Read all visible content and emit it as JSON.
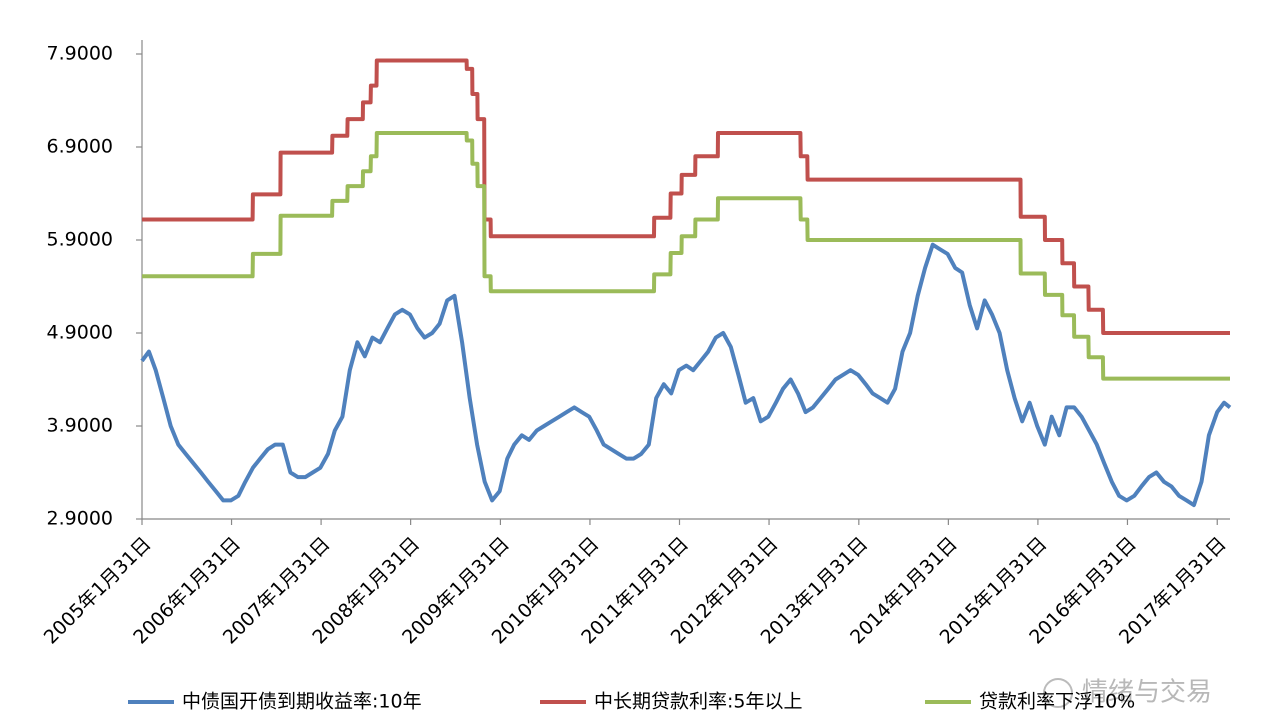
{
  "chart_data": {
    "type": "line",
    "xlim": [
      "2005-01-31",
      "2017-03-24"
    ],
    "xticks": [
      {
        "value": "2005-01-31",
        "label": "2005年1月31日"
      },
      {
        "value": "2006-01-31",
        "label": "2006年1月31日"
      },
      {
        "value": "2007-01-31",
        "label": "2007年1月31日"
      },
      {
        "value": "2008-01-31",
        "label": "2008年1月31日"
      },
      {
        "value": "2009-01-31",
        "label": "2009年1月31日"
      },
      {
        "value": "2010-01-31",
        "label": "2010年1月31日"
      },
      {
        "value": "2011-01-31",
        "label": "2011年1月31日"
      },
      {
        "value": "2012-01-31",
        "label": "2012年1月31日"
      },
      {
        "value": "2013-01-31",
        "label": "2013年1月31日"
      },
      {
        "value": "2014-01-31",
        "label": "2014年1月31日"
      },
      {
        "value": "2015-01-31",
        "label": "2015年1月31日"
      },
      {
        "value": "2016-01-31",
        "label": "2016年1月31日"
      },
      {
        "value": "2017-01-31",
        "label": "2017年1月31日"
      }
    ],
    "ylim": [
      2.9,
      7.9
    ],
    "yticks": [
      {
        "value": 2.9,
        "label": "2.9000"
      },
      {
        "value": 3.9,
        "label": "3.9000"
      },
      {
        "value": 4.9,
        "label": "4.9000"
      },
      {
        "value": 5.9,
        "label": "5.9000"
      },
      {
        "value": 6.9,
        "label": "6.9000"
      },
      {
        "value": 7.9,
        "label": "7.9000"
      }
    ],
    "grid": false,
    "legend": "bottom",
    "watermark": "情绪与交易",
    "series": [
      {
        "name": "中债国开债到期收益率:10年",
        "color": "#4f81bd",
        "x": [
          "2005-01-31",
          "2005-02-28",
          "2005-03-28",
          "2005-04-28",
          "2005-05-28",
          "2005-06-28",
          "2005-07-28",
          "2005-08-28",
          "2005-09-28",
          "2005-10-28",
          "2005-11-28",
          "2005-12-28",
          "2006-01-28",
          "2006-02-28",
          "2006-03-28",
          "2006-04-28",
          "2006-05-28",
          "2006-06-28",
          "2006-07-28",
          "2006-08-28",
          "2006-09-28",
          "2006-10-28",
          "2006-11-28",
          "2006-12-28",
          "2007-01-28",
          "2007-02-28",
          "2007-03-28",
          "2007-04-28",
          "2007-05-28",
          "2007-06-28",
          "2007-07-28",
          "2007-08-28",
          "2007-09-28",
          "2007-10-28",
          "2007-11-28",
          "2007-12-28",
          "2008-01-28",
          "2008-02-28",
          "2008-03-28",
          "2008-04-28",
          "2008-05-28",
          "2008-06-28",
          "2008-07-28",
          "2008-08-28",
          "2008-09-28",
          "2008-10-28",
          "2008-11-28",
          "2008-12-28",
          "2009-01-28",
          "2009-02-28",
          "2009-03-28",
          "2009-04-28",
          "2009-05-28",
          "2009-06-28",
          "2009-07-28",
          "2009-08-28",
          "2009-09-28",
          "2009-10-28",
          "2009-11-28",
          "2009-12-28",
          "2010-01-28",
          "2010-02-28",
          "2010-03-28",
          "2010-04-28",
          "2010-05-28",
          "2010-06-28",
          "2010-07-28",
          "2010-08-28",
          "2010-09-28",
          "2010-10-28",
          "2010-11-28",
          "2010-12-28",
          "2011-01-28",
          "2011-02-28",
          "2011-03-28",
          "2011-04-28",
          "2011-05-28",
          "2011-06-28",
          "2011-07-28",
          "2011-08-28",
          "2011-09-28",
          "2011-10-28",
          "2011-11-28",
          "2011-12-28",
          "2012-01-28",
          "2012-02-28",
          "2012-03-28",
          "2012-04-28",
          "2012-05-28",
          "2012-06-28",
          "2012-07-28",
          "2012-08-28",
          "2012-09-28",
          "2012-10-28",
          "2012-11-28",
          "2012-12-28",
          "2013-01-28",
          "2013-02-28",
          "2013-03-28",
          "2013-04-28",
          "2013-05-28",
          "2013-06-28",
          "2013-07-28",
          "2013-08-28",
          "2013-09-28",
          "2013-10-28",
          "2013-11-28",
          "2013-12-28",
          "2014-01-28",
          "2014-02-28",
          "2014-03-28",
          "2014-04-28",
          "2014-05-28",
          "2014-06-28",
          "2014-07-28",
          "2014-08-28",
          "2014-09-28",
          "2014-10-28",
          "2014-11-28",
          "2014-12-28",
          "2015-01-28",
          "2015-02-28",
          "2015-03-28",
          "2015-04-28",
          "2015-05-28",
          "2015-06-28",
          "2015-07-28",
          "2015-08-28",
          "2015-09-28",
          "2015-10-28",
          "2015-11-28",
          "2015-12-28",
          "2016-01-28",
          "2016-02-28",
          "2016-03-28",
          "2016-04-28",
          "2016-05-28",
          "2016-06-28",
          "2016-07-28",
          "2016-08-28",
          "2016-09-28",
          "2016-10-28",
          "2016-11-28",
          "2016-12-28",
          "2017-01-31",
          "2017-02-28",
          "2017-03-24"
        ],
        "values": [
          4.6,
          4.7,
          4.5,
          4.2,
          3.9,
          3.7,
          3.6,
          3.5,
          3.4,
          3.3,
          3.2,
          3.1,
          3.1,
          3.15,
          3.3,
          3.45,
          3.55,
          3.65,
          3.7,
          3.7,
          3.4,
          3.35,
          3.35,
          3.4,
          3.45,
          3.6,
          3.85,
          4.0,
          4.5,
          4.8,
          4.65,
          4.85,
          4.8,
          4.95,
          5.1,
          5.15,
          5.1,
          4.95,
          4.85,
          4.9,
          5.0,
          5.25,
          5.3,
          4.8,
          4.2,
          3.7,
          3.3,
          3.1,
          3.2,
          3.55,
          3.7,
          3.8,
          3.75,
          3.85,
          3.9,
          3.95,
          4.0,
          4.05,
          4.1,
          4.05,
          4.0,
          3.85,
          3.7,
          3.65,
          3.6,
          3.55,
          3.55,
          3.6,
          3.7,
          4.2,
          4.35,
          4.25,
          4.5,
          4.55,
          4.5,
          4.6,
          4.7,
          4.85,
          4.9,
          4.75,
          4.45,
          4.15,
          4.2,
          3.95,
          4.0,
          4.15,
          4.3,
          4.4,
          4.25,
          4.05,
          4.1,
          4.2,
          4.3,
          4.4,
          4.45,
          4.5,
          4.45,
          4.35,
          4.25,
          4.2,
          4.15,
          4.3,
          4.7,
          4.9,
          5.3,
          5.6,
          5.85,
          5.8,
          5.75,
          5.6,
          5.55,
          5.2,
          4.95,
          5.25,
          5.1,
          4.9,
          4.5,
          4.2,
          3.95,
          4.15,
          3.9,
          3.7,
          4.0,
          3.8,
          4.1,
          4.1,
          4.0,
          3.85,
          3.7,
          3.5,
          3.3,
          3.15,
          3.1,
          3.15,
          3.25,
          3.35,
          3.4,
          3.3,
          3.25,
          3.15,
          3.1,
          3.05,
          3.3,
          3.8,
          4.05,
          4.15,
          4.1
        ]
      },
      {
        "name": "中长期贷款利率:5年以上",
        "color": "#c0504d",
        "x": [
          "2005-01-31",
          "2006-04-27",
          "2006-04-28",
          "2006-08-18",
          "2006-08-19",
          "2007-03-17",
          "2007-03-18",
          "2007-05-18",
          "2007-05-19",
          "2007-07-20",
          "2007-07-21",
          "2007-08-21",
          "2007-08-22",
          "2007-09-14",
          "2007-09-15",
          "2008-09-15",
          "2008-09-16",
          "2008-10-08",
          "2008-10-09",
          "2008-10-29",
          "2008-10-30",
          "2008-11-26",
          "2008-11-27",
          "2008-12-22",
          "2008-12-23",
          "2010-10-19",
          "2010-10-20",
          "2010-12-25",
          "2010-12-26",
          "2011-02-08",
          "2011-02-09",
          "2011-04-05",
          "2011-04-06",
          "2011-07-06",
          "2011-07-07",
          "2012-06-07",
          "2012-06-08",
          "2012-07-05",
          "2012-07-06",
          "2014-11-21",
          "2014-11-22",
          "2015-02-28",
          "2015-03-01",
          "2015-05-10",
          "2015-05-11",
          "2015-06-27",
          "2015-06-28",
          "2015-08-25",
          "2015-08-26",
          "2015-10-23",
          "2015-10-24",
          "2017-03-24"
        ],
        "values": [
          6.12,
          6.12,
          6.39,
          6.39,
          6.84,
          6.84,
          7.02,
          7.02,
          7.2,
          7.2,
          7.38,
          7.38,
          7.56,
          7.56,
          7.83,
          7.83,
          7.74,
          7.74,
          7.47,
          7.47,
          7.2,
          7.2,
          6.12,
          6.12,
          5.94,
          5.94,
          6.14,
          6.14,
          6.4,
          6.4,
          6.6,
          6.6,
          6.8,
          6.8,
          7.05,
          7.05,
          6.8,
          6.8,
          6.55,
          6.55,
          6.15,
          6.15,
          5.9,
          5.9,
          5.65,
          5.65,
          5.4,
          5.4,
          5.15,
          5.15,
          4.9,
          4.9
        ]
      },
      {
        "name": "贷款利率下浮10%",
        "color": "#9bbb59",
        "x": [
          "2005-01-31",
          "2006-04-27",
          "2006-04-28",
          "2006-08-18",
          "2006-08-19",
          "2007-03-17",
          "2007-03-18",
          "2007-05-18",
          "2007-05-19",
          "2007-07-20",
          "2007-07-21",
          "2007-08-21",
          "2007-08-22",
          "2007-09-14",
          "2007-09-15",
          "2008-09-15",
          "2008-09-16",
          "2008-10-08",
          "2008-10-09",
          "2008-10-29",
          "2008-10-30",
          "2008-11-26",
          "2008-11-27",
          "2008-12-22",
          "2008-12-23",
          "2010-10-19",
          "2010-10-20",
          "2010-12-25",
          "2010-12-26",
          "2011-02-08",
          "2011-02-09",
          "2011-04-05",
          "2011-04-06",
          "2011-07-06",
          "2011-07-07",
          "2012-06-07",
          "2012-06-08",
          "2012-07-05",
          "2012-07-06",
          "2014-11-21",
          "2014-11-22",
          "2015-02-28",
          "2015-03-01",
          "2015-05-10",
          "2015-05-11",
          "2015-06-27",
          "2015-06-28",
          "2015-08-25",
          "2015-08-26",
          "2015-10-23",
          "2015-10-24",
          "2017-03-24"
        ],
        "values": [
          5.51,
          5.51,
          5.75,
          5.75,
          6.16,
          6.16,
          6.32,
          6.32,
          6.48,
          6.48,
          6.64,
          6.64,
          6.8,
          6.8,
          7.05,
          7.05,
          6.97,
          6.97,
          6.72,
          6.72,
          6.48,
          6.48,
          5.51,
          5.51,
          5.35,
          5.35,
          5.53,
          5.53,
          5.76,
          5.76,
          5.94,
          5.94,
          6.12,
          6.12,
          6.35,
          6.35,
          6.12,
          6.12,
          5.9,
          5.9,
          5.54,
          5.54,
          5.31,
          5.31,
          5.09,
          5.09,
          4.86,
          4.86,
          4.64,
          4.64,
          4.41,
          4.41
        ]
      }
    ]
  }
}
